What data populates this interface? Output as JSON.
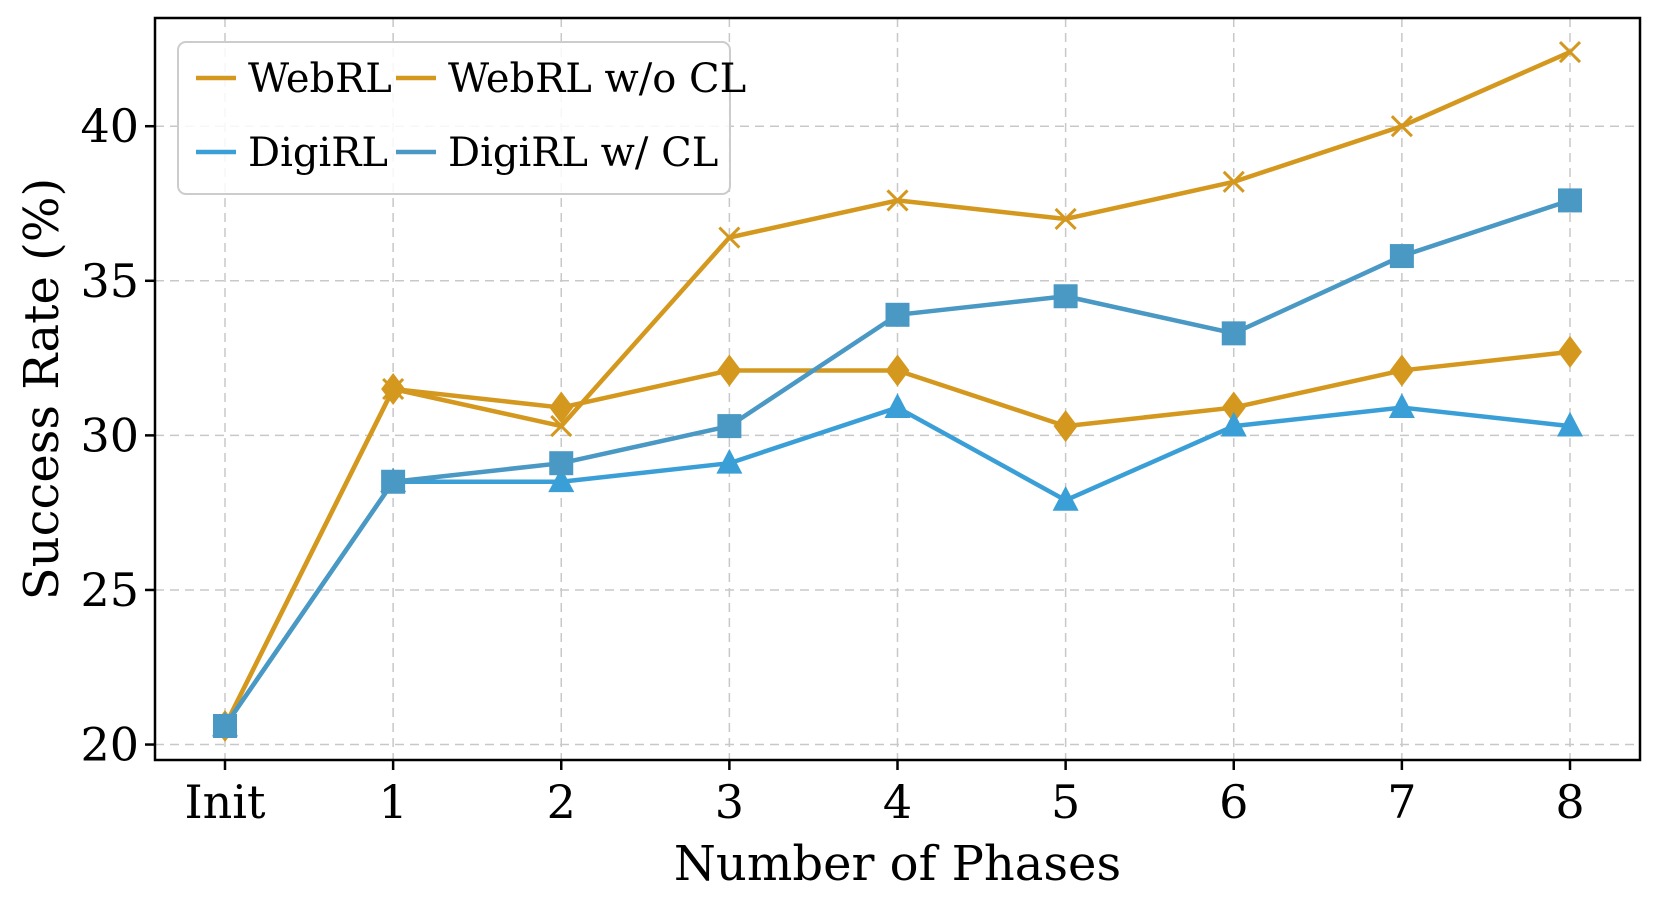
{
  "chart_data": {
    "type": "line",
    "title": "",
    "xlabel": "Number of Phases",
    "ylabel": "Success Rate (%)",
    "categories": [
      "Init",
      "1",
      "2",
      "3",
      "4",
      "5",
      "6",
      "7",
      "8"
    ],
    "yticks": [
      20,
      25,
      30,
      35,
      40
    ],
    "ylim": [
      19.5,
      43.5
    ],
    "grid": true,
    "legend": {
      "placement": "top-left",
      "columns": 2
    },
    "series": [
      {
        "name": "WebRL",
        "color": "#D4981E",
        "marker": "diamond",
        "values": [
          20.6,
          31.5,
          30.9,
          32.1,
          32.1,
          30.3,
          30.9,
          32.1,
          32.7
        ]
      },
      {
        "name": "WebRL w/o CL",
        "color": "#D4981E",
        "marker": "x",
        "values": [
          20.6,
          31.5,
          30.3,
          36.4,
          37.6,
          37.0,
          38.2,
          40.0,
          42.4
        ]
      },
      {
        "name": "DigiRL",
        "color": "#3A9FD6",
        "marker": "triangle",
        "values": [
          20.6,
          28.5,
          28.5,
          29.1,
          30.9,
          27.9,
          30.3,
          30.9,
          30.3
        ]
      },
      {
        "name": "DigiRL w/ CL",
        "color": "#4A98C4",
        "marker": "square",
        "values": [
          20.6,
          28.5,
          29.1,
          30.3,
          33.9,
          34.5,
          33.3,
          35.8,
          37.6
        ]
      }
    ]
  }
}
